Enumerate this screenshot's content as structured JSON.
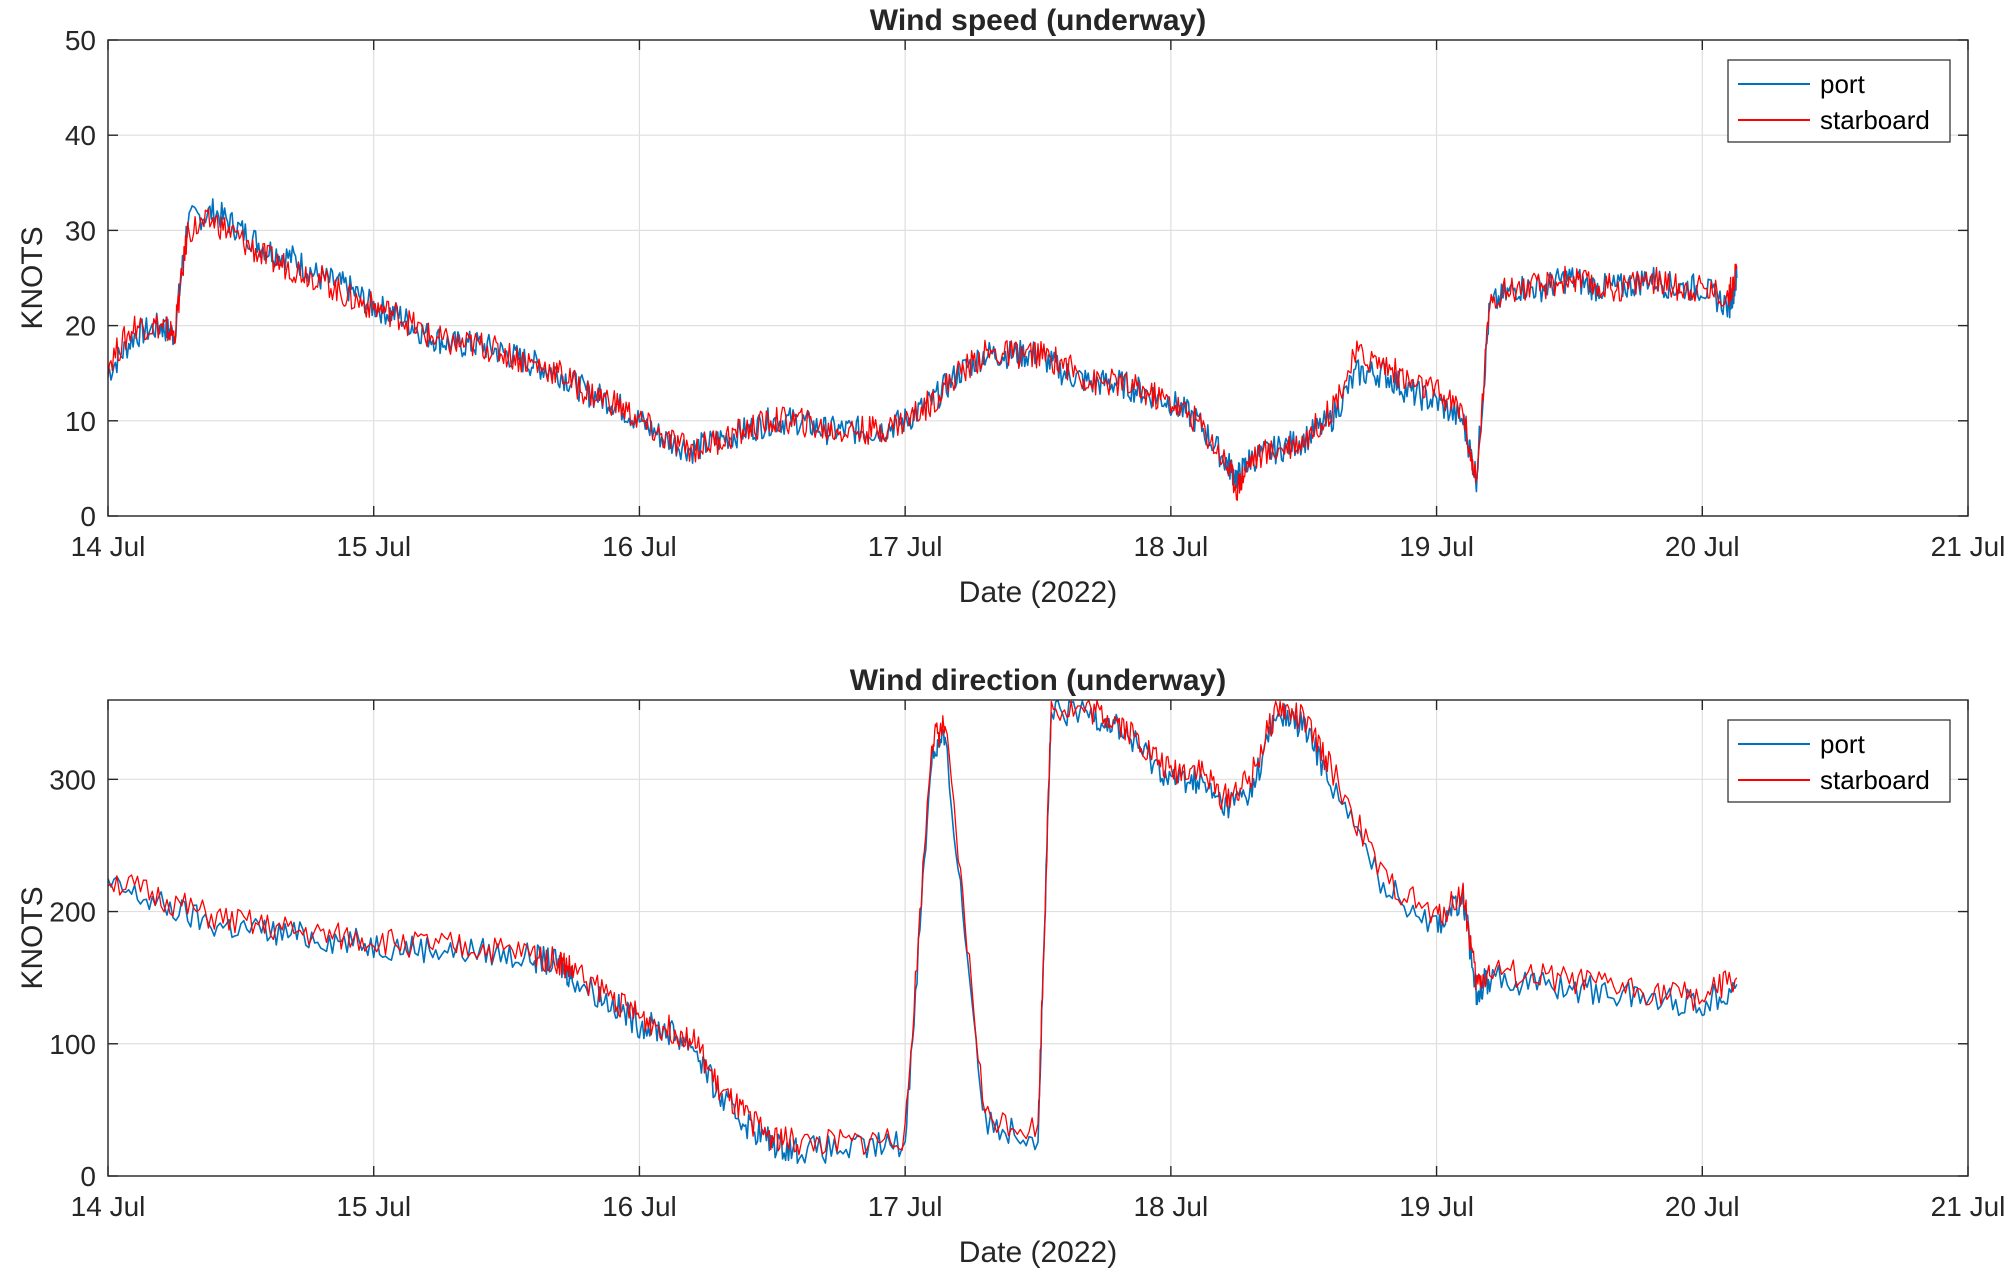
{
  "chart_data": [
    {
      "type": "line",
      "title": "Wind speed (underway)",
      "xlabel": "Date (2022)",
      "ylabel": "KNOTS",
      "x_tick_labels": [
        "14 Jul",
        "15 Jul",
        "16 Jul",
        "17 Jul",
        "18 Jul",
        "19 Jul",
        "20 Jul",
        "21 Jul"
      ],
      "xlim": [
        0,
        7
      ],
      "ylim": [
        0,
        50
      ],
      "y_ticks": [
        0,
        10,
        20,
        30,
        40,
        50
      ],
      "grid": true,
      "legend_position": "top-right",
      "series": [
        {
          "name": "port",
          "color": "#0072BD",
          "x": [
            0.0,
            0.1,
            0.2,
            0.25,
            0.3,
            0.4,
            0.5,
            0.6,
            0.7,
            0.8,
            0.9,
            1.0,
            1.1,
            1.2,
            1.3,
            1.4,
            1.5,
            1.6,
            1.7,
            1.8,
            1.9,
            2.0,
            2.1,
            2.2,
            2.3,
            2.4,
            2.5,
            2.6,
            2.7,
            2.8,
            2.9,
            3.0,
            3.1,
            3.2,
            3.3,
            3.4,
            3.5,
            3.6,
            3.7,
            3.8,
            3.9,
            4.0,
            4.1,
            4.2,
            4.25,
            4.3,
            4.4,
            4.5,
            4.6,
            4.7,
            4.8,
            4.9,
            5.0,
            5.1,
            5.15,
            5.2,
            5.3,
            5.4,
            5.5,
            5.6,
            5.7,
            5.8,
            5.9,
            6.0,
            6.1,
            6.13
          ],
          "y": [
            15,
            19,
            20,
            19,
            31,
            32,
            30,
            28,
            27,
            25,
            24,
            22,
            21,
            19,
            18,
            18,
            17,
            16,
            15,
            13,
            12,
            10,
            8,
            7,
            8,
            9,
            10,
            10,
            9,
            9,
            9,
            10,
            12,
            15,
            17,
            17,
            17,
            15,
            14,
            14,
            13,
            12,
            10,
            6,
            4,
            6,
            7,
            8,
            10,
            15,
            15,
            13,
            12,
            10,
            4,
            22,
            24,
            24,
            25,
            24,
            24,
            25,
            24,
            24,
            22,
            25
          ]
        },
        {
          "name": "starboard",
          "color": "#FF0000",
          "x": [
            0.0,
            0.1,
            0.2,
            0.25,
            0.3,
            0.4,
            0.5,
            0.6,
            0.7,
            0.8,
            0.9,
            1.0,
            1.1,
            1.2,
            1.3,
            1.4,
            1.5,
            1.6,
            1.7,
            1.8,
            1.9,
            2.0,
            2.1,
            2.2,
            2.3,
            2.4,
            2.5,
            2.6,
            2.7,
            2.8,
            2.9,
            3.0,
            3.1,
            3.2,
            3.3,
            3.4,
            3.5,
            3.6,
            3.7,
            3.8,
            3.9,
            4.0,
            4.1,
            4.2,
            4.25,
            4.3,
            4.4,
            4.5,
            4.6,
            4.7,
            4.8,
            4.9,
            5.0,
            5.1,
            5.15,
            5.2,
            5.3,
            5.4,
            5.5,
            5.6,
            5.7,
            5.8,
            5.9,
            6.0,
            6.1,
            6.13
          ],
          "y": [
            16,
            20,
            20,
            19,
            30,
            31,
            29,
            27,
            26,
            25,
            23,
            22,
            21,
            19,
            18,
            18,
            17,
            16,
            15,
            13,
            12,
            10,
            8,
            7,
            8,
            9,
            10,
            10,
            9,
            9,
            9,
            10,
            12,
            15,
            17,
            17,
            17,
            16,
            14,
            14,
            13,
            12,
            10,
            6,
            3,
            6,
            7,
            8,
            11,
            17,
            16,
            14,
            13,
            11,
            3,
            23,
            24,
            24,
            25,
            24,
            24,
            25,
            24,
            24,
            23,
            26
          ]
        }
      ]
    },
    {
      "type": "line",
      "title": "Wind direction (underway)",
      "xlabel": "Date (2022)",
      "ylabel": "KNOTS",
      "x_tick_labels": [
        "14 Jul",
        "15 Jul",
        "16 Jul",
        "17 Jul",
        "18 Jul",
        "19 Jul",
        "20 Jul",
        "21 Jul"
      ],
      "xlim": [
        0,
        7
      ],
      "ylim": [
        0,
        360
      ],
      "y_ticks": [
        0,
        100,
        200,
        300
      ],
      "grid": true,
      "legend_position": "top-right",
      "series": [
        {
          "name": "port",
          "color": "#0072BD",
          "x": [
            0.0,
            0.2,
            0.4,
            0.6,
            0.8,
            1.0,
            1.2,
            1.4,
            1.6,
            1.7,
            1.75,
            1.9,
            2.0,
            2.1,
            2.2,
            2.3,
            2.4,
            2.5,
            2.6,
            2.8,
            3.0,
            3.1,
            3.15,
            3.3,
            3.5,
            3.55,
            3.7,
            3.8,
            3.9,
            4.0,
            4.1,
            4.2,
            4.3,
            4.4,
            4.5,
            4.6,
            4.8,
            5.0,
            5.1,
            5.15,
            5.2,
            5.4,
            5.6,
            5.8,
            6.0,
            6.13
          ],
          "y": [
            220,
            205,
            190,
            185,
            180,
            175,
            172,
            170,
            165,
            160,
            150,
            130,
            115,
            110,
            100,
            60,
            40,
            25,
            20,
            20,
            25,
            320,
            330,
            40,
            30,
            350,
            350,
            340,
            320,
            300,
            300,
            280,
            290,
            350,
            340,
            300,
            220,
            190,
            210,
            140,
            150,
            145,
            140,
            135,
            130,
            145
          ]
        },
        {
          "name": "starboard",
          "color": "#FF0000",
          "x": [
            0.0,
            0.2,
            0.4,
            0.6,
            0.8,
            1.0,
            1.2,
            1.4,
            1.6,
            1.7,
            1.75,
            1.9,
            2.0,
            2.1,
            2.2,
            2.3,
            2.4,
            2.5,
            2.6,
            2.8,
            3.0,
            3.1,
            3.15,
            3.3,
            3.5,
            3.55,
            3.7,
            3.8,
            3.9,
            4.0,
            4.1,
            4.2,
            4.3,
            4.4,
            4.5,
            4.6,
            4.8,
            5.0,
            5.1,
            5.15,
            5.2,
            5.4,
            5.6,
            5.8,
            6.0,
            6.13
          ],
          "y": [
            225,
            210,
            195,
            188,
            182,
            178,
            175,
            172,
            168,
            162,
            155,
            135,
            120,
            112,
            105,
            65,
            45,
            30,
            25,
            25,
            30,
            330,
            340,
            45,
            35,
            355,
            352,
            345,
            325,
            305,
            310,
            285,
            300,
            355,
            345,
            310,
            225,
            195,
            215,
            145,
            155,
            150,
            145,
            140,
            135,
            150
          ]
        }
      ]
    }
  ]
}
